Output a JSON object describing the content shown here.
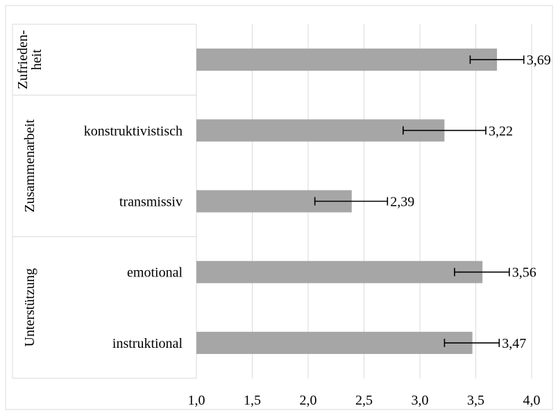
{
  "chart_data": {
    "type": "bar",
    "orientation": "horizontal",
    "xlim": [
      1.0,
      4.0
    ],
    "x_ticks": [
      "1,0",
      "1,5",
      "2,0",
      "2,5",
      "3,0",
      "3,5",
      "4,0"
    ],
    "grid": "vertical",
    "bar_color": "#a6a6a6",
    "groups": [
      {
        "label_lines": [
          "Zufrieden-",
          "heit"
        ],
        "items": [
          {
            "category": "",
            "value": 3.69,
            "value_label": "3,69",
            "err_low": 3.45,
            "err_high": 3.93
          }
        ]
      },
      {
        "label_lines": [
          "Zusammenarbeit"
        ],
        "items": [
          {
            "category": "konstruktivistisch",
            "value": 3.22,
            "value_label": "3,22",
            "err_low": 2.85,
            "err_high": 3.59
          },
          {
            "category": "transmissiv",
            "value": 2.39,
            "value_label": "2,39",
            "err_low": 2.06,
            "err_high": 2.71
          }
        ]
      },
      {
        "label_lines": [
          "Unterstützung"
        ],
        "items": [
          {
            "category": "emotional",
            "value": 3.56,
            "value_label": "3,56",
            "err_low": 3.31,
            "err_high": 3.8
          },
          {
            "category": "instruktional",
            "value": 3.47,
            "value_label": "3,47",
            "err_low": 3.22,
            "err_high": 3.71
          }
        ]
      }
    ]
  }
}
